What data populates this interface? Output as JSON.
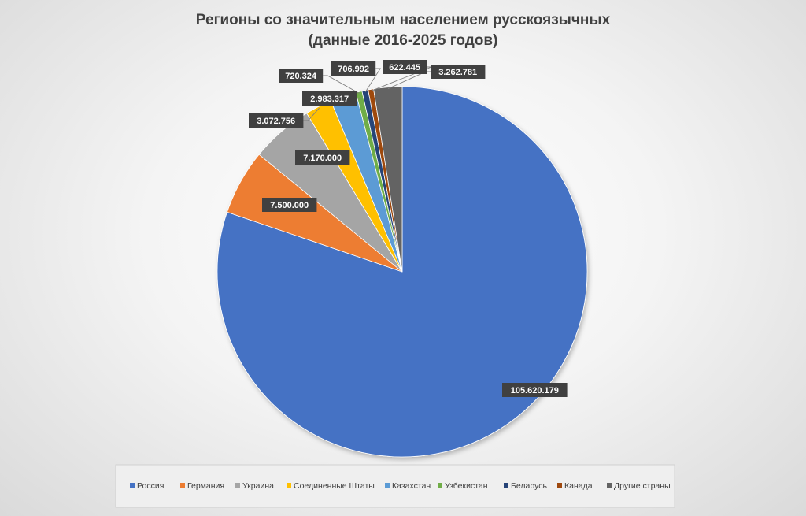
{
  "chart_data": {
    "type": "pie",
    "title": [
      "Регионы со значительным населением русскоязычных",
      "(данные 2016-2025 годов)"
    ],
    "categories": [
      "Россия",
      "Германия",
      "Украина",
      "Соединенные Штаты",
      "Казахстан",
      "Узбекистан",
      "Беларусь",
      "Канада",
      "Другие страны"
    ],
    "values": [
      105620179,
      7500000,
      7170000,
      3072756,
      2983317,
      720324,
      706992,
      622445,
      3262781
    ],
    "data_labels": [
      "105.620.179",
      "7.500.000",
      "7.170.000",
      "3.072.756",
      "2.983.317",
      "720.324",
      "706.992",
      "622.445",
      "3.262.781"
    ],
    "colors": [
      "#4472c4",
      "#ed7d31",
      "#a5a5a5",
      "#ffc000",
      "#5b9bd5",
      "#70ad47",
      "#264478",
      "#9e480e",
      "#636363"
    ],
    "legend_position": "bottom",
    "start_angle": "top",
    "direction": "clockwise"
  }
}
